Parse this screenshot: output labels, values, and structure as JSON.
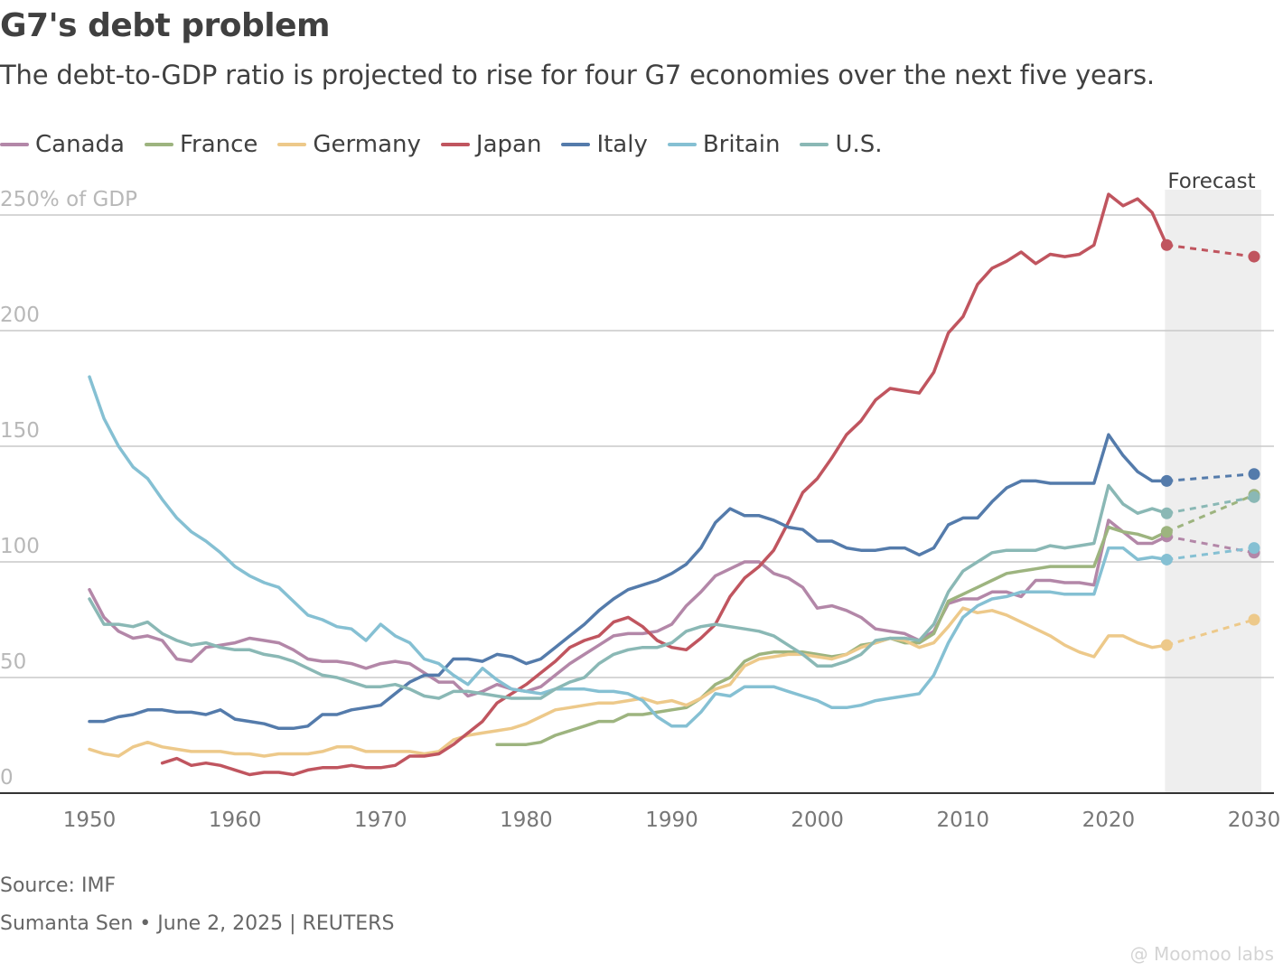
{
  "title": "G7's debt problem",
  "subtitle": "The debt-to-GDP ratio is projected to rise for four G7 economies over the next five years.",
  "forecast_label": "Forecast",
  "source": "Source: IMF",
  "credit": "Sumanta Sen • June 2, 2025 | REUTERS",
  "watermark": "@ Moomoo labs",
  "colors": {
    "Canada": "#b387a8",
    "France": "#9db47f",
    "Germany": "#edc98a",
    "Japan": "#c0555f",
    "Italy": "#547bab",
    "Britain": "#85c0d3",
    "U.S.": "#8ab8b5",
    "grid": "#c8c8c8",
    "axis": "#333333",
    "forecast_band": "#eeeeee"
  },
  "chart_data": {
    "type": "line",
    "title": "G7's debt problem",
    "subtitle": "The debt-to-GDP ratio is projected to rise for four G7 economies over the next five years.",
    "ylabel_top": "250% of GDP",
    "xlim": [
      1950,
      2030
    ],
    "ylim": [
      0,
      250
    ],
    "yticks": [
      0,
      50,
      100,
      150,
      200,
      250
    ],
    "ytick_labels": [
      "0",
      "50",
      "100",
      "150",
      "200",
      "250% of GDP"
    ],
    "xticks": [
      1950,
      1960,
      1970,
      1980,
      1990,
      2000,
      2010,
      2020,
      2030
    ],
    "forecast_start": 2024,
    "grid": true,
    "legend": "top",
    "series": [
      {
        "name": "Canada",
        "x": [
          1950,
          1951,
          1952,
          1953,
          1954,
          1955,
          1956,
          1957,
          1958,
          1959,
          1960,
          1961,
          1962,
          1963,
          1964,
          1965,
          1966,
          1967,
          1968,
          1969,
          1970,
          1971,
          1972,
          1973,
          1974,
          1975,
          1976,
          1977,
          1978,
          1979,
          1980,
          1981,
          1982,
          1983,
          1984,
          1985,
          1986,
          1987,
          1988,
          1989,
          1990,
          1991,
          1992,
          1993,
          1994,
          1995,
          1996,
          1997,
          1998,
          1999,
          2000,
          2001,
          2002,
          2003,
          2004,
          2005,
          2006,
          2007,
          2008,
          2009,
          2010,
          2011,
          2012,
          2013,
          2014,
          2015,
          2016,
          2017,
          2018,
          2019,
          2020,
          2021,
          2022,
          2023,
          2024
        ],
        "y": [
          88,
          76,
          70,
          67,
          68,
          66,
          58,
          57,
          63,
          64,
          65,
          67,
          66,
          65,
          62,
          58,
          57,
          57,
          56,
          54,
          56,
          57,
          56,
          52,
          48,
          48,
          42,
          44,
          47,
          45,
          44,
          46,
          51,
          56,
          60,
          64,
          68,
          69,
          69,
          70,
          73,
          81,
          87,
          94,
          97,
          100,
          100,
          95,
          93,
          89,
          80,
          81,
          79,
          76,
          71,
          70,
          69,
          66,
          70,
          82,
          84,
          84,
          87,
          87,
          85,
          92,
          92,
          91,
          91,
          90,
          118,
          113,
          108,
          108,
          111
        ]
      },
      {
        "name": "France",
        "x": [
          1978,
          1979,
          1980,
          1981,
          1982,
          1983,
          1984,
          1985,
          1986,
          1987,
          1988,
          1989,
          1990,
          1991,
          1992,
          1993,
          1994,
          1995,
          1996,
          1997,
          1998,
          1999,
          2000,
          2001,
          2002,
          2003,
          2004,
          2005,
          2006,
          2007,
          2008,
          2009,
          2010,
          2011,
          2012,
          2013,
          2014,
          2015,
          2016,
          2017,
          2018,
          2019,
          2020,
          2021,
          2022,
          2023,
          2024
        ],
        "y": [
          21,
          21,
          21,
          22,
          25,
          27,
          29,
          31,
          31,
          34,
          34,
          35,
          36,
          37,
          41,
          47,
          50,
          57,
          60,
          61,
          61,
          61,
          60,
          59,
          60,
          64,
          65,
          67,
          65,
          65,
          69,
          83,
          86,
          89,
          92,
          95,
          96,
          97,
          98,
          98,
          98,
          98,
          115,
          113,
          112,
          110,
          113
        ]
      },
      {
        "name": "Germany",
        "x": [
          1950,
          1951,
          1952,
          1953,
          1954,
          1955,
          1956,
          1957,
          1958,
          1959,
          1960,
          1961,
          1962,
          1963,
          1964,
          1965,
          1966,
          1967,
          1968,
          1969,
          1970,
          1971,
          1972,
          1973,
          1974,
          1975,
          1976,
          1977,
          1978,
          1979,
          1980,
          1981,
          1982,
          1983,
          1984,
          1985,
          1986,
          1987,
          1988,
          1989,
          1990,
          1991,
          1992,
          1993,
          1994,
          1995,
          1996,
          1997,
          1998,
          1999,
          2000,
          2001,
          2002,
          2003,
          2004,
          2005,
          2006,
          2007,
          2008,
          2009,
          2010,
          2011,
          2012,
          2013,
          2014,
          2015,
          2016,
          2017,
          2018,
          2019,
          2020,
          2021,
          2022,
          2023,
          2024
        ],
        "y": [
          19,
          17,
          16,
          20,
          22,
          20,
          19,
          18,
          18,
          18,
          17,
          17,
          16,
          17,
          17,
          17,
          18,
          20,
          20,
          18,
          18,
          18,
          18,
          17,
          18,
          23,
          25,
          26,
          27,
          28,
          30,
          33,
          36,
          37,
          38,
          39,
          39,
          40,
          41,
          39,
          40,
          38,
          41,
          45,
          47,
          55,
          58,
          59,
          60,
          60,
          59,
          58,
          60,
          63,
          65,
          67,
          66,
          63,
          65,
          72,
          80,
          78,
          79,
          77,
          74,
          71,
          68,
          64,
          61,
          59,
          68,
          68,
          65,
          63,
          64
        ]
      },
      {
        "name": "Japan",
        "x": [
          1955,
          1956,
          1957,
          1958,
          1959,
          1960,
          1961,
          1962,
          1963,
          1964,
          1965,
          1966,
          1967,
          1968,
          1969,
          1970,
          1971,
          1972,
          1973,
          1974,
          1975,
          1976,
          1977,
          1978,
          1979,
          1980,
          1981,
          1982,
          1983,
          1984,
          1985,
          1986,
          1987,
          1988,
          1989,
          1990,
          1991,
          1992,
          1993,
          1994,
          1995,
          1996,
          1997,
          1998,
          1999,
          2000,
          2001,
          2002,
          2003,
          2004,
          2005,
          2006,
          2007,
          2008,
          2009,
          2010,
          2011,
          2012,
          2013,
          2014,
          2015,
          2016,
          2017,
          2018,
          2019,
          2020,
          2021,
          2022,
          2023,
          2024
        ],
        "y": [
          13,
          15,
          12,
          13,
          12,
          10,
          8,
          9,
          9,
          8,
          10,
          11,
          11,
          12,
          11,
          11,
          12,
          16,
          16,
          17,
          21,
          26,
          31,
          39,
          43,
          47,
          52,
          57,
          63,
          66,
          68,
          74,
          76,
          72,
          66,
          63,
          62,
          67,
          73,
          85,
          93,
          98,
          105,
          117,
          130,
          136,
          145,
          155,
          161,
          170,
          175,
          174,
          173,
          182,
          199,
          206,
          220,
          227,
          230,
          234,
          229,
          233,
          232,
          233,
          237,
          259,
          254,
          257,
          251,
          237
        ]
      },
      {
        "name": "Italy",
        "x": [
          1950,
          1951,
          1952,
          1953,
          1954,
          1955,
          1956,
          1957,
          1958,
          1959,
          1960,
          1961,
          1962,
          1963,
          1964,
          1965,
          1966,
          1967,
          1968,
          1969,
          1970,
          1971,
          1972,
          1973,
          1974,
          1975,
          1976,
          1977,
          1978,
          1979,
          1980,
          1981,
          1982,
          1983,
          1984,
          1985,
          1986,
          1987,
          1988,
          1989,
          1990,
          1991,
          1992,
          1993,
          1994,
          1995,
          1996,
          1997,
          1998,
          1999,
          2000,
          2001,
          2002,
          2003,
          2004,
          2005,
          2006,
          2007,
          2008,
          2009,
          2010,
          2011,
          2012,
          2013,
          2014,
          2015,
          2016,
          2017,
          2018,
          2019,
          2020,
          2021,
          2022,
          2023,
          2024
        ],
        "y": [
          31,
          31,
          33,
          34,
          36,
          36,
          35,
          35,
          34,
          36,
          32,
          31,
          30,
          28,
          28,
          29,
          34,
          34,
          36,
          37,
          38,
          43,
          48,
          51,
          51,
          58,
          58,
          57,
          60,
          59,
          56,
          58,
          63,
          68,
          73,
          79,
          84,
          88,
          90,
          92,
          95,
          99,
          106,
          117,
          123,
          120,
          120,
          118,
          115,
          114,
          109,
          109,
          106,
          105,
          105,
          106,
          106,
          103,
          106,
          116,
          119,
          119,
          126,
          132,
          135,
          135,
          134,
          134,
          134,
          134,
          155,
          146,
          139,
          135,
          135
        ]
      },
      {
        "name": "Britain",
        "x": [
          1950,
          1951,
          1952,
          1953,
          1954,
          1955,
          1956,
          1957,
          1958,
          1959,
          1960,
          1961,
          1962,
          1963,
          1964,
          1965,
          1966,
          1967,
          1968,
          1969,
          1970,
          1971,
          1972,
          1973,
          1974,
          1975,
          1976,
          1977,
          1978,
          1979,
          1980,
          1981,
          1982,
          1983,
          1984,
          1985,
          1986,
          1987,
          1988,
          1989,
          1990,
          1991,
          1992,
          1993,
          1994,
          1995,
          1996,
          1997,
          1998,
          1999,
          2000,
          2001,
          2002,
          2003,
          2004,
          2005,
          2006,
          2007,
          2008,
          2009,
          2010,
          2011,
          2012,
          2013,
          2014,
          2015,
          2016,
          2017,
          2018,
          2019,
          2020,
          2021,
          2022,
          2023,
          2024
        ],
        "y": [
          180,
          162,
          150,
          141,
          136,
          127,
          119,
          113,
          109,
          104,
          98,
          94,
          91,
          89,
          83,
          77,
          75,
          72,
          71,
          66,
          73,
          68,
          65,
          58,
          56,
          51,
          47,
          54,
          49,
          45,
          44,
          43,
          45,
          45,
          45,
          44,
          44,
          43,
          40,
          33,
          29,
          29,
          35,
          43,
          42,
          46,
          46,
          46,
          44,
          42,
          40,
          37,
          37,
          38,
          40,
          41,
          42,
          43,
          51,
          65,
          76,
          81,
          84,
          85,
          87,
          87,
          87,
          86,
          86,
          86,
          106,
          106,
          101,
          102,
          101
        ]
      },
      {
        "name": "U.S.",
        "x": [
          1950,
          1951,
          1952,
          1953,
          1954,
          1955,
          1956,
          1957,
          1958,
          1959,
          1960,
          1961,
          1962,
          1963,
          1964,
          1965,
          1966,
          1967,
          1968,
          1969,
          1970,
          1971,
          1972,
          1973,
          1974,
          1975,
          1976,
          1977,
          1978,
          1979,
          1980,
          1981,
          1982,
          1983,
          1984,
          1985,
          1986,
          1987,
          1988,
          1989,
          1990,
          1991,
          1992,
          1993,
          1994,
          1995,
          1996,
          1997,
          1998,
          1999,
          2000,
          2001,
          2002,
          2003,
          2004,
          2005,
          2006,
          2007,
          2008,
          2009,
          2010,
          2011,
          2012,
          2013,
          2014,
          2015,
          2016,
          2017,
          2018,
          2019,
          2020,
          2021,
          2022,
          2023,
          2024
        ],
        "y": [
          84,
          73,
          73,
          72,
          74,
          69,
          66,
          64,
          65,
          63,
          62,
          62,
          60,
          59,
          57,
          54,
          51,
          50,
          48,
          46,
          46,
          47,
          45,
          42,
          41,
          44,
          44,
          43,
          42,
          41,
          41,
          41,
          45,
          48,
          50,
          56,
          60,
          62,
          63,
          63,
          65,
          70,
          72,
          73,
          72,
          71,
          70,
          68,
          64,
          60,
          55,
          55,
          57,
          60,
          66,
          67,
          67,
          66,
          73,
          87,
          96,
          100,
          104,
          105,
          105,
          105,
          107,
          106,
          107,
          108,
          133,
          125,
          121,
          123,
          121
        ]
      }
    ],
    "forecast": [
      {
        "name": "Canada",
        "x": [
          2024,
          2030
        ],
        "y": [
          111,
          104
        ]
      },
      {
        "name": "France",
        "x": [
          2024,
          2030
        ],
        "y": [
          113,
          129
        ]
      },
      {
        "name": "Germany",
        "x": [
          2024,
          2030
        ],
        "y": [
          64,
          75
        ]
      },
      {
        "name": "Japan",
        "x": [
          2024,
          2030
        ],
        "y": [
          237,
          232
        ]
      },
      {
        "name": "Italy",
        "x": [
          2024,
          2030
        ],
        "y": [
          135,
          138
        ]
      },
      {
        "name": "Britain",
        "x": [
          2024,
          2030
        ],
        "y": [
          101,
          106
        ]
      },
      {
        "name": "U.S.",
        "x": [
          2024,
          2030
        ],
        "y": [
          121,
          128
        ]
      }
    ]
  }
}
